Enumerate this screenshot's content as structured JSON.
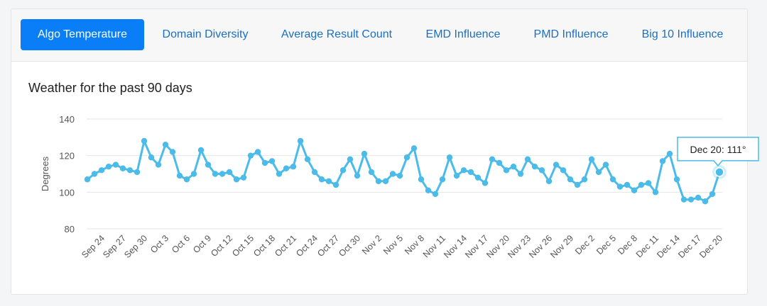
{
  "tabs": [
    {
      "label": "Algo Temperature",
      "active": true
    },
    {
      "label": "Domain Diversity",
      "active": false
    },
    {
      "label": "Average Result Count",
      "active": false
    },
    {
      "label": "EMD Influence",
      "active": false
    },
    {
      "label": "PMD Influence",
      "active": false
    },
    {
      "label": "Big 10 Influence",
      "active": false
    }
  ],
  "colors": {
    "accent": "#0a7ef7",
    "series": "#4bbbea",
    "grid": "#e4e4e4"
  },
  "chart_data": {
    "type": "line",
    "title": "Weather for the past 90 days",
    "xlabel": "",
    "ylabel": "Degrees",
    "ylim": [
      80,
      140
    ],
    "yticks": [
      80,
      100,
      120,
      140
    ],
    "grid": true,
    "x_ticks": [
      "Sep 24",
      "Sep 27",
      "Sep 30",
      "Oct 3",
      "Oct 6",
      "Oct 9",
      "Oct 12",
      "Oct 15",
      "Oct 18",
      "Oct 21",
      "Oct 24",
      "Oct 27",
      "Oct 30",
      "Nov 2",
      "Nov 5",
      "Nov 8",
      "Nov 11",
      "Nov 14",
      "Nov 17",
      "Nov 20",
      "Nov 23",
      "Nov 26",
      "Nov 29",
      "Dec 2",
      "Dec 5",
      "Dec 8",
      "Dec 11",
      "Dec 14",
      "Dec 17",
      "Dec 20"
    ],
    "series": [
      {
        "name": "Degrees",
        "values": [
          107,
          110,
          112,
          114,
          115,
          113,
          112,
          111,
          128,
          119,
          115,
          126,
          122,
          109,
          107,
          110,
          123,
          115,
          110,
          110,
          111,
          107,
          108,
          120,
          122,
          116,
          117,
          110,
          113,
          114,
          128,
          118,
          111,
          107,
          106,
          104,
          112,
          118,
          109,
          121,
          111,
          106,
          106,
          110,
          109,
          119,
          124,
          107,
          101,
          99,
          107,
          119,
          109,
          112,
          111,
          108,
          105,
          118,
          116,
          112,
          114,
          110,
          118,
          114,
          112,
          106,
          115,
          112,
          107,
          104,
          107,
          118,
          111,
          115,
          107,
          103,
          104,
          101,
          104,
          105,
          100,
          117,
          121,
          107,
          96,
          96,
          97,
          95,
          99,
          111
        ]
      }
    ],
    "tooltip": {
      "label": "Dec 20: 111°",
      "index": 89
    }
  }
}
